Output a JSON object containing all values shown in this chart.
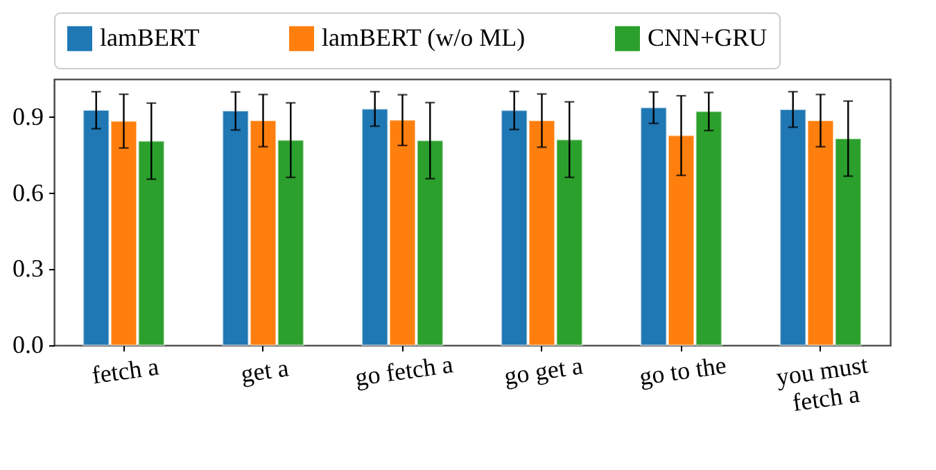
{
  "chart_data": {
    "type": "bar",
    "categories": [
      "fetch a",
      "get a",
      "go fetch a",
      "go get a",
      "go to the",
      "you must fetch a"
    ],
    "series": [
      {
        "name": "lamBERT",
        "color": "#1f77b4",
        "values": [
          0.927,
          0.924,
          0.932,
          0.926,
          0.937,
          0.93
        ],
        "errors": [
          0.073,
          0.075,
          0.068,
          0.075,
          0.062,
          0.07
        ]
      },
      {
        "name": "lamBERT (w/o ML)",
        "color": "#ff7f0e",
        "values": [
          0.884,
          0.886,
          0.888,
          0.886,
          0.827,
          0.886
        ],
        "errors": [
          0.106,
          0.103,
          0.1,
          0.105,
          0.157,
          0.103
        ]
      },
      {
        "name": "CNN+GRU",
        "color": "#2ca02c",
        "values": [
          0.805,
          0.809,
          0.807,
          0.811,
          0.922,
          0.815
        ],
        "errors": [
          0.15,
          0.147,
          0.15,
          0.149,
          0.075,
          0.148
        ]
      }
    ],
    "ylim": [
      0,
      1.05
    ],
    "yticks": [
      {
        "value": 0,
        "label": "0.0"
      },
      0.3,
      0.6,
      0.9
    ],
    "legend": "top",
    "grid": false
  }
}
